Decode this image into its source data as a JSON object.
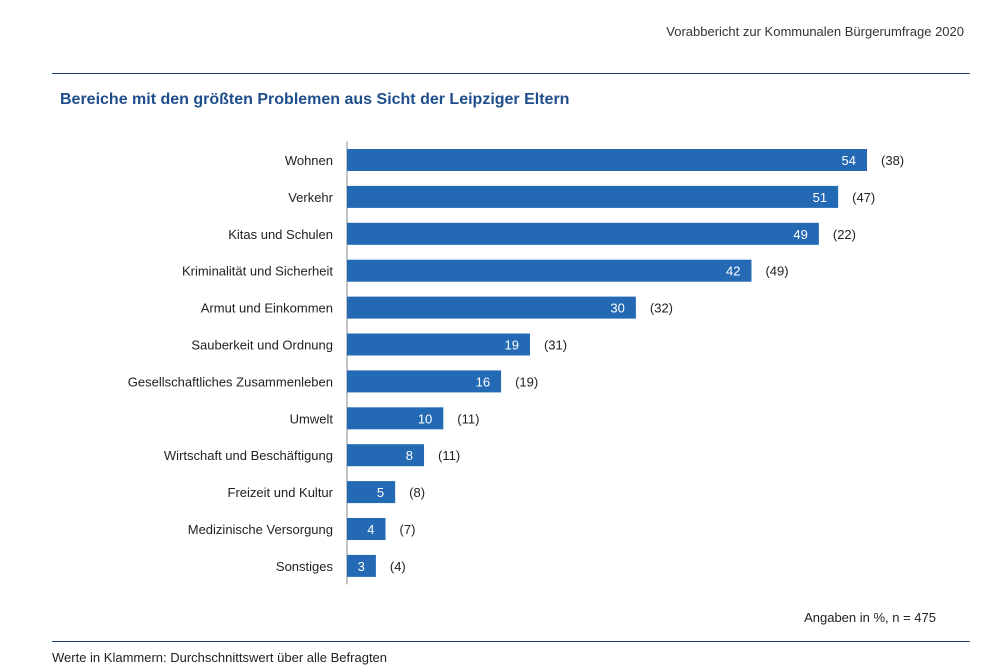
{
  "header": {
    "report_title": "Vorabbericht zur Kommunalen Bürgerumfrage 2020"
  },
  "colors": {
    "bar": "#2369b4",
    "rule": "#1f3f73",
    "title": "#1f4e8c"
  },
  "chart_data": {
    "type": "bar",
    "orientation": "horizontal",
    "title": "Bereiche mit den größten Problemen aus Sicht der Leipziger Eltern",
    "categories": [
      "Wohnen",
      "Verkehr",
      "Kitas und Schulen",
      "Kriminalität und Sicherheit",
      "Armut und Einkommen",
      "Sauberkeit und Ordnung",
      "Gesellschaftliches Zusammenleben",
      "Umwelt",
      "Wirtschaft und Beschäftigung",
      "Freizeit und Kultur",
      "Medizinische Versorgung",
      "Sonstiges"
    ],
    "values": [
      54,
      51,
      49,
      42,
      30,
      19,
      16,
      10,
      8,
      5,
      4,
      3
    ],
    "bracket_labels": [
      "(38)",
      "(47)",
      "(22)",
      "(49)",
      "(32)",
      "(31)",
      "(19)",
      "(11)",
      "(11)",
      "(8)",
      "(7)",
      "(4)"
    ],
    "unit_note": "Angaben in %, n = 475",
    "footnote": "Werte in Klammern: Durchschnittswert über alle Befragten"
  }
}
